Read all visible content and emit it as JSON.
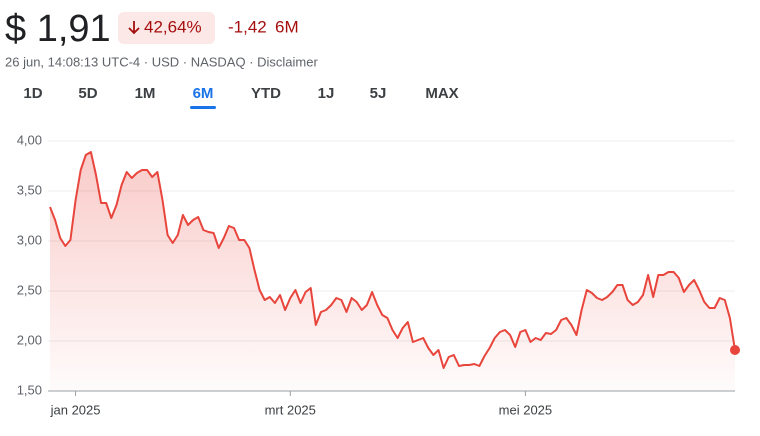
{
  "header": {
    "price": "$ 1,91",
    "change_percent": "42,64%",
    "change": "-1,42",
    "period": "6M",
    "info": "26 jun, 14:08:13 UTC-4 · USD · NASDAQ · Disclaimer"
  },
  "tabs": {
    "items": [
      "1D",
      "5D",
      "1M",
      "6M",
      "YTD",
      "1J",
      "5J",
      "MAX"
    ],
    "selected": 3
  },
  "chart_data": {
    "type": "line",
    "color": "#e8453c",
    "grid": true,
    "ylim": [
      1.5,
      4.0
    ],
    "yticks": [
      {
        "value": 1.5,
        "label": "1,50"
      },
      {
        "value": 2,
        "label": "2,00"
      },
      {
        "value": 2.5,
        "label": "2,50"
      },
      {
        "value": 3,
        "label": "3,00"
      },
      {
        "value": 3.5,
        "label": "3,50"
      },
      {
        "value": 4,
        "label": "4,00"
      }
    ],
    "categories": [
      null,
      null,
      null,
      null,
      null,
      "jan 2025",
      null,
      null,
      null,
      null,
      null,
      null,
      null,
      null,
      null,
      null,
      null,
      null,
      null,
      null,
      null,
      null,
      null,
      null,
      null,
      null,
      null,
      null,
      null,
      null,
      null,
      null,
      null,
      null,
      null,
      null,
      null,
      null,
      null,
      null,
      null,
      null,
      null,
      null,
      null,
      null,
      null,
      "mrt 2025",
      null,
      null,
      null,
      null,
      null,
      null,
      null,
      null,
      null,
      null,
      null,
      null,
      null,
      null,
      null,
      null,
      null,
      null,
      null,
      null,
      null,
      null,
      null,
      null,
      null,
      null,
      null,
      null,
      null,
      null,
      null,
      null,
      null,
      null,
      null,
      null,
      null,
      null,
      null,
      null,
      null,
      null,
      null,
      null,
      null,
      "mei 2025",
      null,
      null,
      null,
      null,
      null,
      null,
      null,
      null,
      null,
      null,
      null,
      null,
      null,
      null,
      null,
      null,
      null,
      null,
      null,
      null,
      null,
      null,
      null,
      null,
      null,
      null,
      null,
      null,
      null,
      null,
      null,
      null,
      null,
      null,
      null,
      null,
      null,
      null,
      null,
      null,
      null
    ],
    "values": [
      3.34,
      3.21,
      3.03,
      2.95,
      3.01,
      3.41,
      3.71,
      3.86,
      3.89,
      3.66,
      3.38,
      3.38,
      3.23,
      3.36,
      3.56,
      3.69,
      3.63,
      3.68,
      3.71,
      3.71,
      3.64,
      3.69,
      3.41,
      3.06,
      2.98,
      3.06,
      3.26,
      3.16,
      3.21,
      3.24,
      3.11,
      3.09,
      3.08,
      2.93,
      3.03,
      3.15,
      3.13,
      3.01,
      3.01,
      2.93,
      2.71,
      2.51,
      2.41,
      2.44,
      2.38,
      2.46,
      2.31,
      2.43,
      2.51,
      2.38,
      2.49,
      2.53,
      2.16,
      2.29,
      2.31,
      2.36,
      2.43,
      2.41,
      2.29,
      2.43,
      2.39,
      2.31,
      2.36,
      2.49,
      2.36,
      2.26,
      2.23,
      2.11,
      2.03,
      2.13,
      2.19,
      1.99,
      2.01,
      2.03,
      1.93,
      1.86,
      1.91,
      1.73,
      1.84,
      1.86,
      1.75,
      1.76,
      1.76,
      1.77,
      1.75,
      1.85,
      1.93,
      2.03,
      2.09,
      2.11,
      2.06,
      1.94,
      2.09,
      2.11,
      1.99,
      2.03,
      2.01,
      2.08,
      2.07,
      2.11,
      2.21,
      2.23,
      2.16,
      2.06,
      2.31,
      2.51,
      2.48,
      2.43,
      2.41,
      2.44,
      2.49,
      2.56,
      2.56,
      2.41,
      2.36,
      2.39,
      2.46,
      2.66,
      2.44,
      2.66,
      2.66,
      2.69,
      2.69,
      2.63,
      2.49,
      2.56,
      2.61,
      2.51,
      2.39,
      2.33,
      2.33,
      2.43,
      2.41,
      2.23,
      1.91
    ]
  }
}
